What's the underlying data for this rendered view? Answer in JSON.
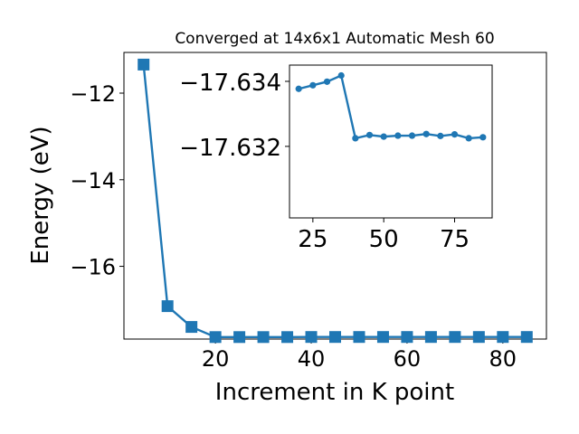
{
  "chart_data": [
    {
      "type": "line",
      "title": "Converged at 14x6x1 Automatic Mesh 60",
      "xlabel": "Increment in K point",
      "ylabel": "Energy (eV)",
      "xlim": [
        0.9,
        89.1
      ],
      "ylim": [
        -17.68,
        -11.06
      ],
      "xticks": [
        20,
        40,
        60,
        80
      ],
      "yticks": [
        -16,
        -14,
        -12
      ],
      "xtick_labels": [
        "20",
        "40",
        "60",
        "80"
      ],
      "ytick_labels": [
        "−16",
        "−14",
        "−12"
      ],
      "grid": false,
      "legend": "none",
      "color": "#1f77b4",
      "marker": "square",
      "series": [
        {
          "x": [
            5,
            10,
            15,
            20,
            25,
            30,
            35,
            40,
            45,
            50,
            55,
            60,
            65,
            70,
            75,
            80,
            85
          ],
          "y": [
            -11.34,
            -16.92,
            -17.4,
            -17.634,
            -17.634,
            -17.634,
            -17.634,
            -17.632,
            -17.632,
            -17.632,
            -17.632,
            -17.632,
            -17.632,
            -17.632,
            -17.632,
            -17.632,
            -17.632
          ]
        }
      ]
    },
    {
      "type": "line",
      "title": "",
      "xlabel": "",
      "ylabel": "",
      "xlim": [
        16.75,
        88.25
      ],
      "ylim": [
        -17.6298,
        -17.6345
      ],
      "y_inverted": true,
      "xticks": [
        25,
        50,
        75
      ],
      "yticks": [
        -17.634,
        -17.632
      ],
      "xtick_labels": [
        "25",
        "50",
        "75"
      ],
      "ytick_labels": [
        "−17.634",
        "−17.632"
      ],
      "grid": false,
      "legend": "none",
      "color": "#1f77b4",
      "marker": "circle",
      "series": [
        {
          "x": [
            20,
            25,
            30,
            35,
            40,
            45,
            50,
            55,
            60,
            65,
            70,
            75,
            80,
            85
          ],
          "y": [
            -17.63377,
            -17.63388,
            -17.63399,
            -17.63418,
            -17.63225,
            -17.63235,
            -17.6323,
            -17.63233,
            -17.63233,
            -17.63238,
            -17.63232,
            -17.63237,
            -17.63225,
            -17.63228
          ]
        }
      ]
    }
  ]
}
